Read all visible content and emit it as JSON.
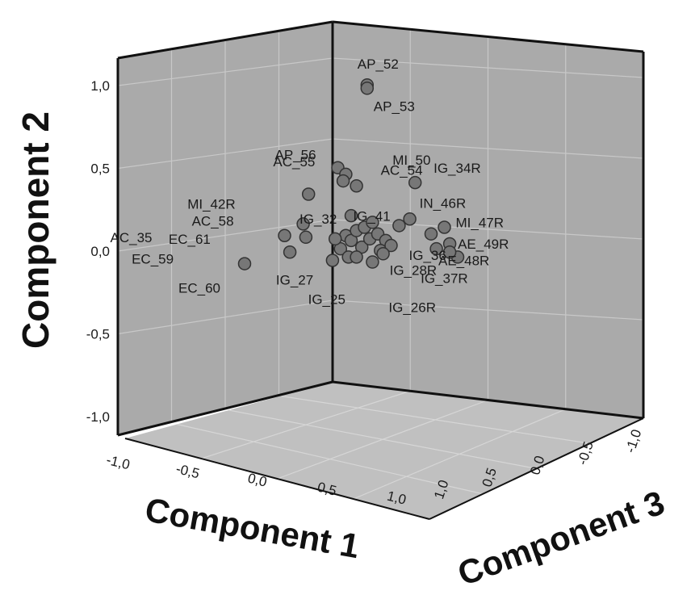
{
  "chart_data": {
    "type": "scatter",
    "projection": "3d",
    "axes": {
      "x": {
        "label": "Component 1",
        "range": [
          -1.0,
          1.0
        ],
        "ticks": [
          "-1,0",
          "-0,5",
          "0,0",
          "0,5",
          "1,0"
        ]
      },
      "y": {
        "label": "Component 2",
        "range": [
          -1.0,
          1.0
        ],
        "ticks": [
          "-1,0",
          "-0,5",
          "0,0",
          "0,5",
          "1,0"
        ]
      },
      "z": {
        "label": "Component 3",
        "range": [
          -1.0,
          1.0
        ],
        "ticks": [
          "1,0",
          "0,5",
          "0,0",
          "-0,5",
          "-1,0"
        ]
      }
    },
    "colors": {
      "wall": "#aaaaaa",
      "floor": "#c0c0c0",
      "grid": "#c8c8c8",
      "marker": "#777777"
    },
    "points": [
      {
        "label": "AP_52",
        "c1": -0.04,
        "c2": 0.96
      },
      {
        "label": "AP_53",
        "c1": -0.04,
        "c2": 0.94
      },
      {
        "label": "AP_56",
        "c1": -0.15,
        "c2": 0.46
      },
      {
        "label": "AC_55",
        "c1": -0.12,
        "c2": 0.42
      },
      {
        "label": "MI_50",
        "c1": 0.14,
        "c2": 0.37
      },
      {
        "label": "AC_54",
        "c1": -0.08,
        "c2": 0.35
      },
      {
        "label": "IG_34R",
        "c1": -0.13,
        "c2": 0.38
      },
      {
        "label": "MI_42R",
        "c1": -0.26,
        "c2": 0.3
      },
      {
        "label": "IG_32",
        "c1": -0.1,
        "c2": 0.17
      },
      {
        "label": "AC_58",
        "c1": -0.28,
        "c2": 0.12
      },
      {
        "label": "IG_41",
        "c1": -0.02,
        "c2": 0.13
      },
      {
        "label": "IN_46R",
        "c1": 0.12,
        "c2": 0.15
      },
      {
        "label": "MI_47R",
        "c1": 0.25,
        "c2": 0.1
      },
      {
        "label": "AE_49R",
        "c1": 0.27,
        "c2": 0.0
      },
      {
        "label": "AC_35",
        "c1": -0.35,
        "c2": 0.05
      },
      {
        "label": "EC_61",
        "c1": -0.27,
        "c2": 0.04
      },
      {
        "label": "IG_36",
        "c1": 0.05,
        "c2": -0.01
      },
      {
        "label": "AE_48R",
        "c1": 0.3,
        "c2": -0.08
      },
      {
        "label": "EC_59",
        "c1": -0.33,
        "c2": -0.05
      },
      {
        "label": "IG_28R",
        "c1": 0.02,
        "c2": -0.06
      },
      {
        "label": "IG_37R",
        "c1": 0.27,
        "c2": -0.05
      },
      {
        "label": "EC_60",
        "c1": -0.5,
        "c2": -0.12
      },
      {
        "label": "IG_27",
        "c1": -0.17,
        "c2": -0.1
      },
      {
        "label": "IG_25",
        "c1": -0.08,
        "c2": -0.08
      },
      {
        "label": "IG_26R",
        "c1": -0.02,
        "c2": -0.11
      }
    ]
  }
}
